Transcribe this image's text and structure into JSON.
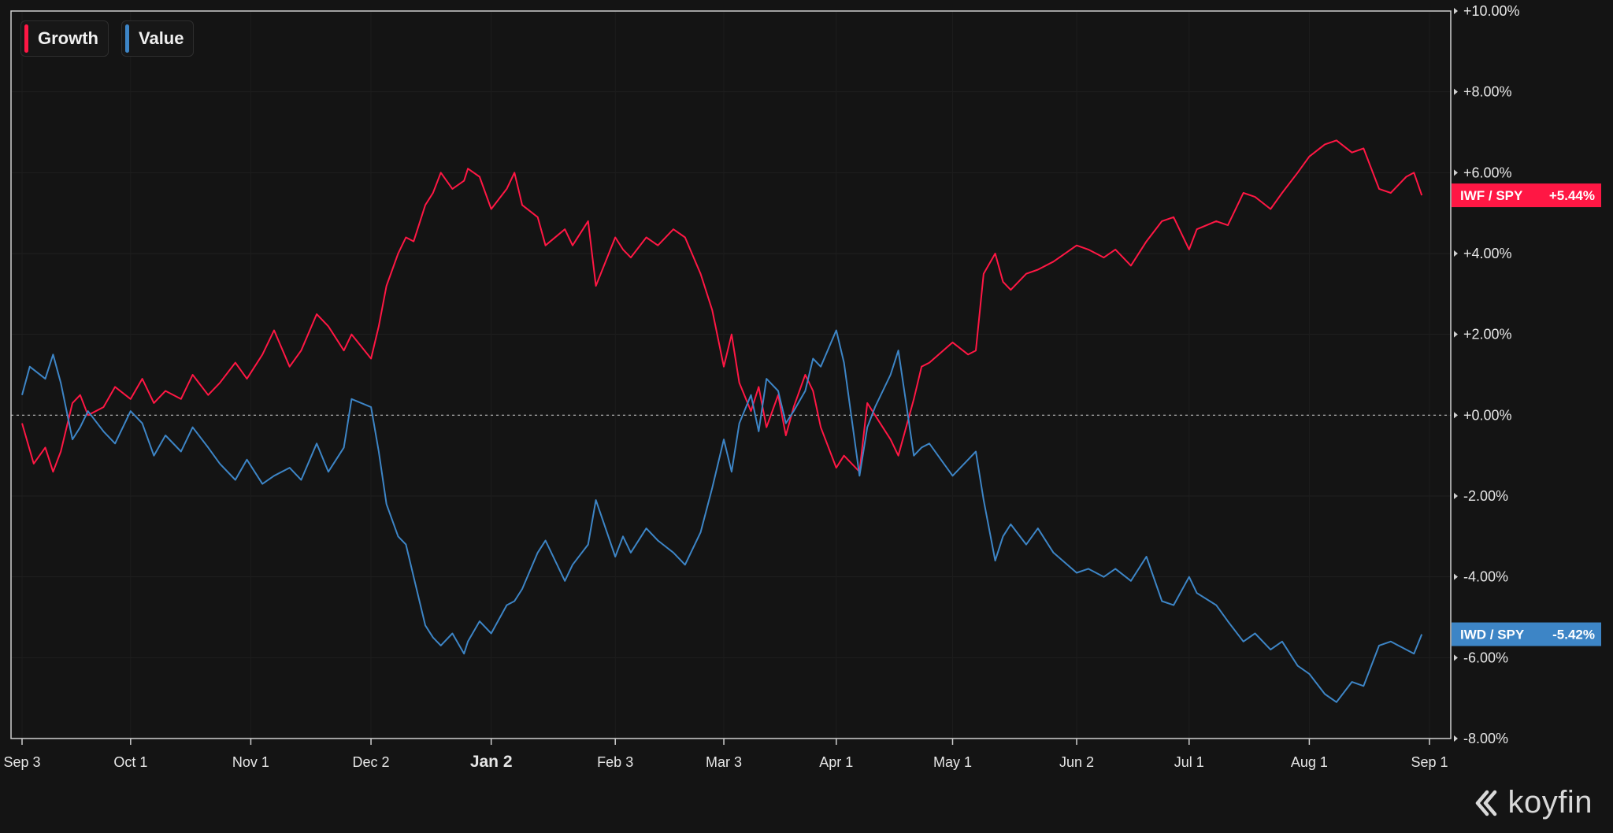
{
  "legend": {
    "items": [
      {
        "label": "Growth",
        "color": "#ff1744"
      },
      {
        "label": "Value",
        "color": "#3d85c6"
      }
    ]
  },
  "brand": {
    "name": "koyfin"
  },
  "chart_data": {
    "type": "line",
    "title": "",
    "xlabel": "",
    "ylabel": "",
    "x_ticks": [
      "Sep 3",
      "Oct 1",
      "Nov 1",
      "Dec 2",
      "Jan 2",
      "Feb 3",
      "Mar 3",
      "Apr 1",
      "May 1",
      "Jun 2",
      "Jul 1",
      "Aug 1",
      "Sep 1"
    ],
    "x_tick_emphasis": "Jan 2",
    "y_ticks": [
      "+10.00%",
      "+8.00%",
      "+6.00%",
      "+4.00%",
      "+2.00%",
      "+0.00%",
      "-2.00%",
      "-4.00%",
      "-6.00%",
      "-8.00%"
    ],
    "ylim": [
      -8,
      10
    ],
    "y_unit": "%",
    "grid": true,
    "zero_line": "dotted",
    "legend_position": "top-left",
    "series": [
      {
        "name": "Growth",
        "label": "IWF / SPY",
        "last_value_label": "+5.44%",
        "color": "#ff1744",
        "points": [
          [
            "Sep 3",
            -0.2
          ],
          [
            "Sep 6",
            -1.2
          ],
          [
            "Sep 9",
            -0.8
          ],
          [
            "Sep 11",
            -1.4
          ],
          [
            "Sep 13",
            -0.9
          ],
          [
            "Sep 16",
            0.3
          ],
          [
            "Sep 18",
            0.5
          ],
          [
            "Sep 20",
            0.0
          ],
          [
            "Sep 24",
            0.2
          ],
          [
            "Sep 27",
            0.7
          ],
          [
            "Oct 1",
            0.4
          ],
          [
            "Oct 4",
            0.9
          ],
          [
            "Oct 7",
            0.3
          ],
          [
            "Oct 10",
            0.6
          ],
          [
            "Oct 14",
            0.4
          ],
          [
            "Oct 17",
            1.0
          ],
          [
            "Oct 21",
            0.5
          ],
          [
            "Oct 24",
            0.8
          ],
          [
            "Oct 28",
            1.3
          ],
          [
            "Oct 31",
            0.9
          ],
          [
            "Nov 4",
            1.5
          ],
          [
            "Nov 7",
            2.1
          ],
          [
            "Nov 11",
            1.2
          ],
          [
            "Nov 14",
            1.6
          ],
          [
            "Nov 18",
            2.5
          ],
          [
            "Nov 21",
            2.2
          ],
          [
            "Nov 25",
            1.6
          ],
          [
            "Nov 27",
            2.0
          ],
          [
            "Dec 2",
            1.4
          ],
          [
            "Dec 4",
            2.2
          ],
          [
            "Dec 6",
            3.2
          ],
          [
            "Dec 9",
            4.0
          ],
          [
            "Dec 11",
            4.4
          ],
          [
            "Dec 13",
            4.3
          ],
          [
            "Dec 16",
            5.2
          ],
          [
            "Dec 18",
            5.5
          ],
          [
            "Dec 20",
            6.0
          ],
          [
            "Dec 23",
            5.6
          ],
          [
            "Dec 26",
            5.8
          ],
          [
            "Dec 27",
            6.1
          ],
          [
            "Dec 30",
            5.9
          ],
          [
            "Jan 2",
            5.1
          ],
          [
            "Jan 6",
            5.6
          ],
          [
            "Jan 8",
            6.0
          ],
          [
            "Jan 10",
            5.2
          ],
          [
            "Jan 14",
            4.9
          ],
          [
            "Jan 16",
            4.2
          ],
          [
            "Jan 21",
            4.6
          ],
          [
            "Jan 23",
            4.2
          ],
          [
            "Jan 27",
            4.8
          ],
          [
            "Jan 29",
            3.2
          ],
          [
            "Feb 3",
            4.4
          ],
          [
            "Feb 5",
            4.1
          ],
          [
            "Feb 7",
            3.9
          ],
          [
            "Feb 11",
            4.4
          ],
          [
            "Feb 14",
            4.2
          ],
          [
            "Feb 18",
            4.6
          ],
          [
            "Feb 21",
            4.4
          ],
          [
            "Feb 25",
            3.5
          ],
          [
            "Feb 28",
            2.6
          ],
          [
            "Mar 3",
            1.2
          ],
          [
            "Mar 5",
            2.0
          ],
          [
            "Mar 7",
            0.8
          ],
          [
            "Mar 10",
            0.1
          ],
          [
            "Mar 12",
            0.7
          ],
          [
            "Mar 14",
            -0.3
          ],
          [
            "Mar 17",
            0.5
          ],
          [
            "Mar 19",
            -0.5
          ],
          [
            "Mar 21",
            0.2
          ],
          [
            "Mar 24",
            1.0
          ],
          [
            "Mar 26",
            0.6
          ],
          [
            "Mar 28",
            -0.3
          ],
          [
            "Apr 1",
            -1.3
          ],
          [
            "Apr 3",
            -1.0
          ],
          [
            "Apr 7",
            -1.4
          ],
          [
            "Apr 9",
            0.3
          ],
          [
            "Apr 11",
            0.0
          ],
          [
            "Apr 15",
            -0.6
          ],
          [
            "Apr 17",
            -1.0
          ],
          [
            "Apr 21",
            0.4
          ],
          [
            "Apr 23",
            1.2
          ],
          [
            "Apr 25",
            1.3
          ],
          [
            "May 1",
            1.8
          ],
          [
            "May 5",
            1.5
          ],
          [
            "May 7",
            1.6
          ],
          [
            "May 9",
            3.5
          ],
          [
            "May 12",
            4.0
          ],
          [
            "May 14",
            3.3
          ],
          [
            "May 16",
            3.1
          ],
          [
            "May 20",
            3.5
          ],
          [
            "May 23",
            3.6
          ],
          [
            "May 27",
            3.8
          ],
          [
            "Jun 2",
            4.2
          ],
          [
            "Jun 5",
            4.1
          ],
          [
            "Jun 9",
            3.9
          ],
          [
            "Jun 12",
            4.1
          ],
          [
            "Jun 16",
            3.7
          ],
          [
            "Jun 20",
            4.3
          ],
          [
            "Jun 24",
            4.8
          ],
          [
            "Jun 27",
            4.9
          ],
          [
            "Jul 1",
            4.1
          ],
          [
            "Jul 3",
            4.6
          ],
          [
            "Jul 8",
            4.8
          ],
          [
            "Jul 11",
            4.7
          ],
          [
            "Jul 15",
            5.5
          ],
          [
            "Jul 18",
            5.4
          ],
          [
            "Jul 22",
            5.1
          ],
          [
            "Jul 25",
            5.5
          ],
          [
            "Jul 29",
            6.0
          ],
          [
            "Aug 1",
            6.4
          ],
          [
            "Aug 5",
            6.7
          ],
          [
            "Aug 8",
            6.8
          ],
          [
            "Aug 12",
            6.5
          ],
          [
            "Aug 15",
            6.6
          ],
          [
            "Aug 19",
            5.6
          ],
          [
            "Aug 22",
            5.5
          ],
          [
            "Aug 26",
            5.9
          ],
          [
            "Aug 28",
            6.0
          ],
          [
            "Aug 30",
            5.44
          ]
        ]
      },
      {
        "name": "Value",
        "label": "IWD / SPY",
        "last_value_label": "-5.42%",
        "color": "#3d85c6",
        "points": [
          [
            "Sep 3",
            0.5
          ],
          [
            "Sep 5",
            1.2
          ],
          [
            "Sep 9",
            0.9
          ],
          [
            "Sep 11",
            1.5
          ],
          [
            "Sep 13",
            0.8
          ],
          [
            "Sep 16",
            -0.6
          ],
          [
            "Sep 18",
            -0.3
          ],
          [
            "Sep 20",
            0.1
          ],
          [
            "Sep 24",
            -0.4
          ],
          [
            "Sep 27",
            -0.7
          ],
          [
            "Oct 1",
            0.1
          ],
          [
            "Oct 4",
            -0.2
          ],
          [
            "Oct 7",
            -1.0
          ],
          [
            "Oct 10",
            -0.5
          ],
          [
            "Oct 14",
            -0.9
          ],
          [
            "Oct 17",
            -0.3
          ],
          [
            "Oct 21",
            -0.8
          ],
          [
            "Oct 24",
            -1.2
          ],
          [
            "Oct 28",
            -1.6
          ],
          [
            "Oct 31",
            -1.1
          ],
          [
            "Nov 4",
            -1.7
          ],
          [
            "Nov 7",
            -1.5
          ],
          [
            "Nov 11",
            -1.3
          ],
          [
            "Nov 14",
            -1.6
          ],
          [
            "Nov 18",
            -0.7
          ],
          [
            "Nov 21",
            -1.4
          ],
          [
            "Nov 25",
            -0.8
          ],
          [
            "Nov 27",
            0.4
          ],
          [
            "Dec 2",
            0.2
          ],
          [
            "Dec 4",
            -0.9
          ],
          [
            "Dec 6",
            -2.2
          ],
          [
            "Dec 9",
            -3.0
          ],
          [
            "Dec 11",
            -3.2
          ],
          [
            "Dec 13",
            -4.0
          ],
          [
            "Dec 16",
            -5.2
          ],
          [
            "Dec 18",
            -5.5
          ],
          [
            "Dec 20",
            -5.7
          ],
          [
            "Dec 23",
            -5.4
          ],
          [
            "Dec 26",
            -5.9
          ],
          [
            "Dec 27",
            -5.6
          ],
          [
            "Dec 30",
            -5.1
          ],
          [
            "Jan 2",
            -5.4
          ],
          [
            "Jan 6",
            -4.7
          ],
          [
            "Jan 8",
            -4.6
          ],
          [
            "Jan 10",
            -4.3
          ],
          [
            "Jan 14",
            -3.4
          ],
          [
            "Jan 16",
            -3.1
          ],
          [
            "Jan 21",
            -4.1
          ],
          [
            "Jan 23",
            -3.7
          ],
          [
            "Jan 27",
            -3.2
          ],
          [
            "Jan 29",
            -2.1
          ],
          [
            "Feb 3",
            -3.5
          ],
          [
            "Feb 5",
            -3.0
          ],
          [
            "Feb 7",
            -3.4
          ],
          [
            "Feb 11",
            -2.8
          ],
          [
            "Feb 14",
            -3.1
          ],
          [
            "Feb 18",
            -3.4
          ],
          [
            "Feb 21",
            -3.7
          ],
          [
            "Feb 25",
            -2.9
          ],
          [
            "Feb 28",
            -1.8
          ],
          [
            "Mar 3",
            -0.6
          ],
          [
            "Mar 5",
            -1.4
          ],
          [
            "Mar 7",
            -0.2
          ],
          [
            "Mar 10",
            0.5
          ],
          [
            "Mar 12",
            -0.4
          ],
          [
            "Mar 14",
            0.9
          ],
          [
            "Mar 17",
            0.6
          ],
          [
            "Mar 19",
            -0.2
          ],
          [
            "Mar 21",
            0.1
          ],
          [
            "Mar 24",
            0.6
          ],
          [
            "Mar 26",
            1.4
          ],
          [
            "Mar 28",
            1.2
          ],
          [
            "Apr 1",
            2.1
          ],
          [
            "Apr 3",
            1.3
          ],
          [
            "Apr 7",
            -1.5
          ],
          [
            "Apr 9",
            -0.3
          ],
          [
            "Apr 11",
            0.2
          ],
          [
            "Apr 15",
            1.0
          ],
          [
            "Apr 17",
            1.6
          ],
          [
            "Apr 21",
            -1.0
          ],
          [
            "Apr 23",
            -0.8
          ],
          [
            "Apr 25",
            -0.7
          ],
          [
            "May 1",
            -1.5
          ],
          [
            "May 5",
            -1.1
          ],
          [
            "May 7",
            -0.9
          ],
          [
            "May 9",
            -2.1
          ],
          [
            "May 12",
            -3.6
          ],
          [
            "May 14",
            -3.0
          ],
          [
            "May 16",
            -2.7
          ],
          [
            "May 20",
            -3.2
          ],
          [
            "May 23",
            -2.8
          ],
          [
            "May 27",
            -3.4
          ],
          [
            "Jun 2",
            -3.9
          ],
          [
            "Jun 5",
            -3.8
          ],
          [
            "Jun 9",
            -4.0
          ],
          [
            "Jun 12",
            -3.8
          ],
          [
            "Jun 16",
            -4.1
          ],
          [
            "Jun 20",
            -3.5
          ],
          [
            "Jun 24",
            -4.6
          ],
          [
            "Jun 27",
            -4.7
          ],
          [
            "Jul 1",
            -4.0
          ],
          [
            "Jul 3",
            -4.4
          ],
          [
            "Jul 8",
            -4.7
          ],
          [
            "Jul 11",
            -5.1
          ],
          [
            "Jul 15",
            -5.6
          ],
          [
            "Jul 18",
            -5.4
          ],
          [
            "Jul 22",
            -5.8
          ],
          [
            "Jul 25",
            -5.6
          ],
          [
            "Jul 29",
            -6.2
          ],
          [
            "Aug 1",
            -6.4
          ],
          [
            "Aug 5",
            -6.9
          ],
          [
            "Aug 8",
            -7.1
          ],
          [
            "Aug 12",
            -6.6
          ],
          [
            "Aug 15",
            -6.7
          ],
          [
            "Aug 19",
            -5.7
          ],
          [
            "Aug 22",
            -5.6
          ],
          [
            "Aug 26",
            -5.8
          ],
          [
            "Aug 28",
            -5.9
          ],
          [
            "Aug 30",
            -5.42
          ]
        ]
      }
    ]
  }
}
